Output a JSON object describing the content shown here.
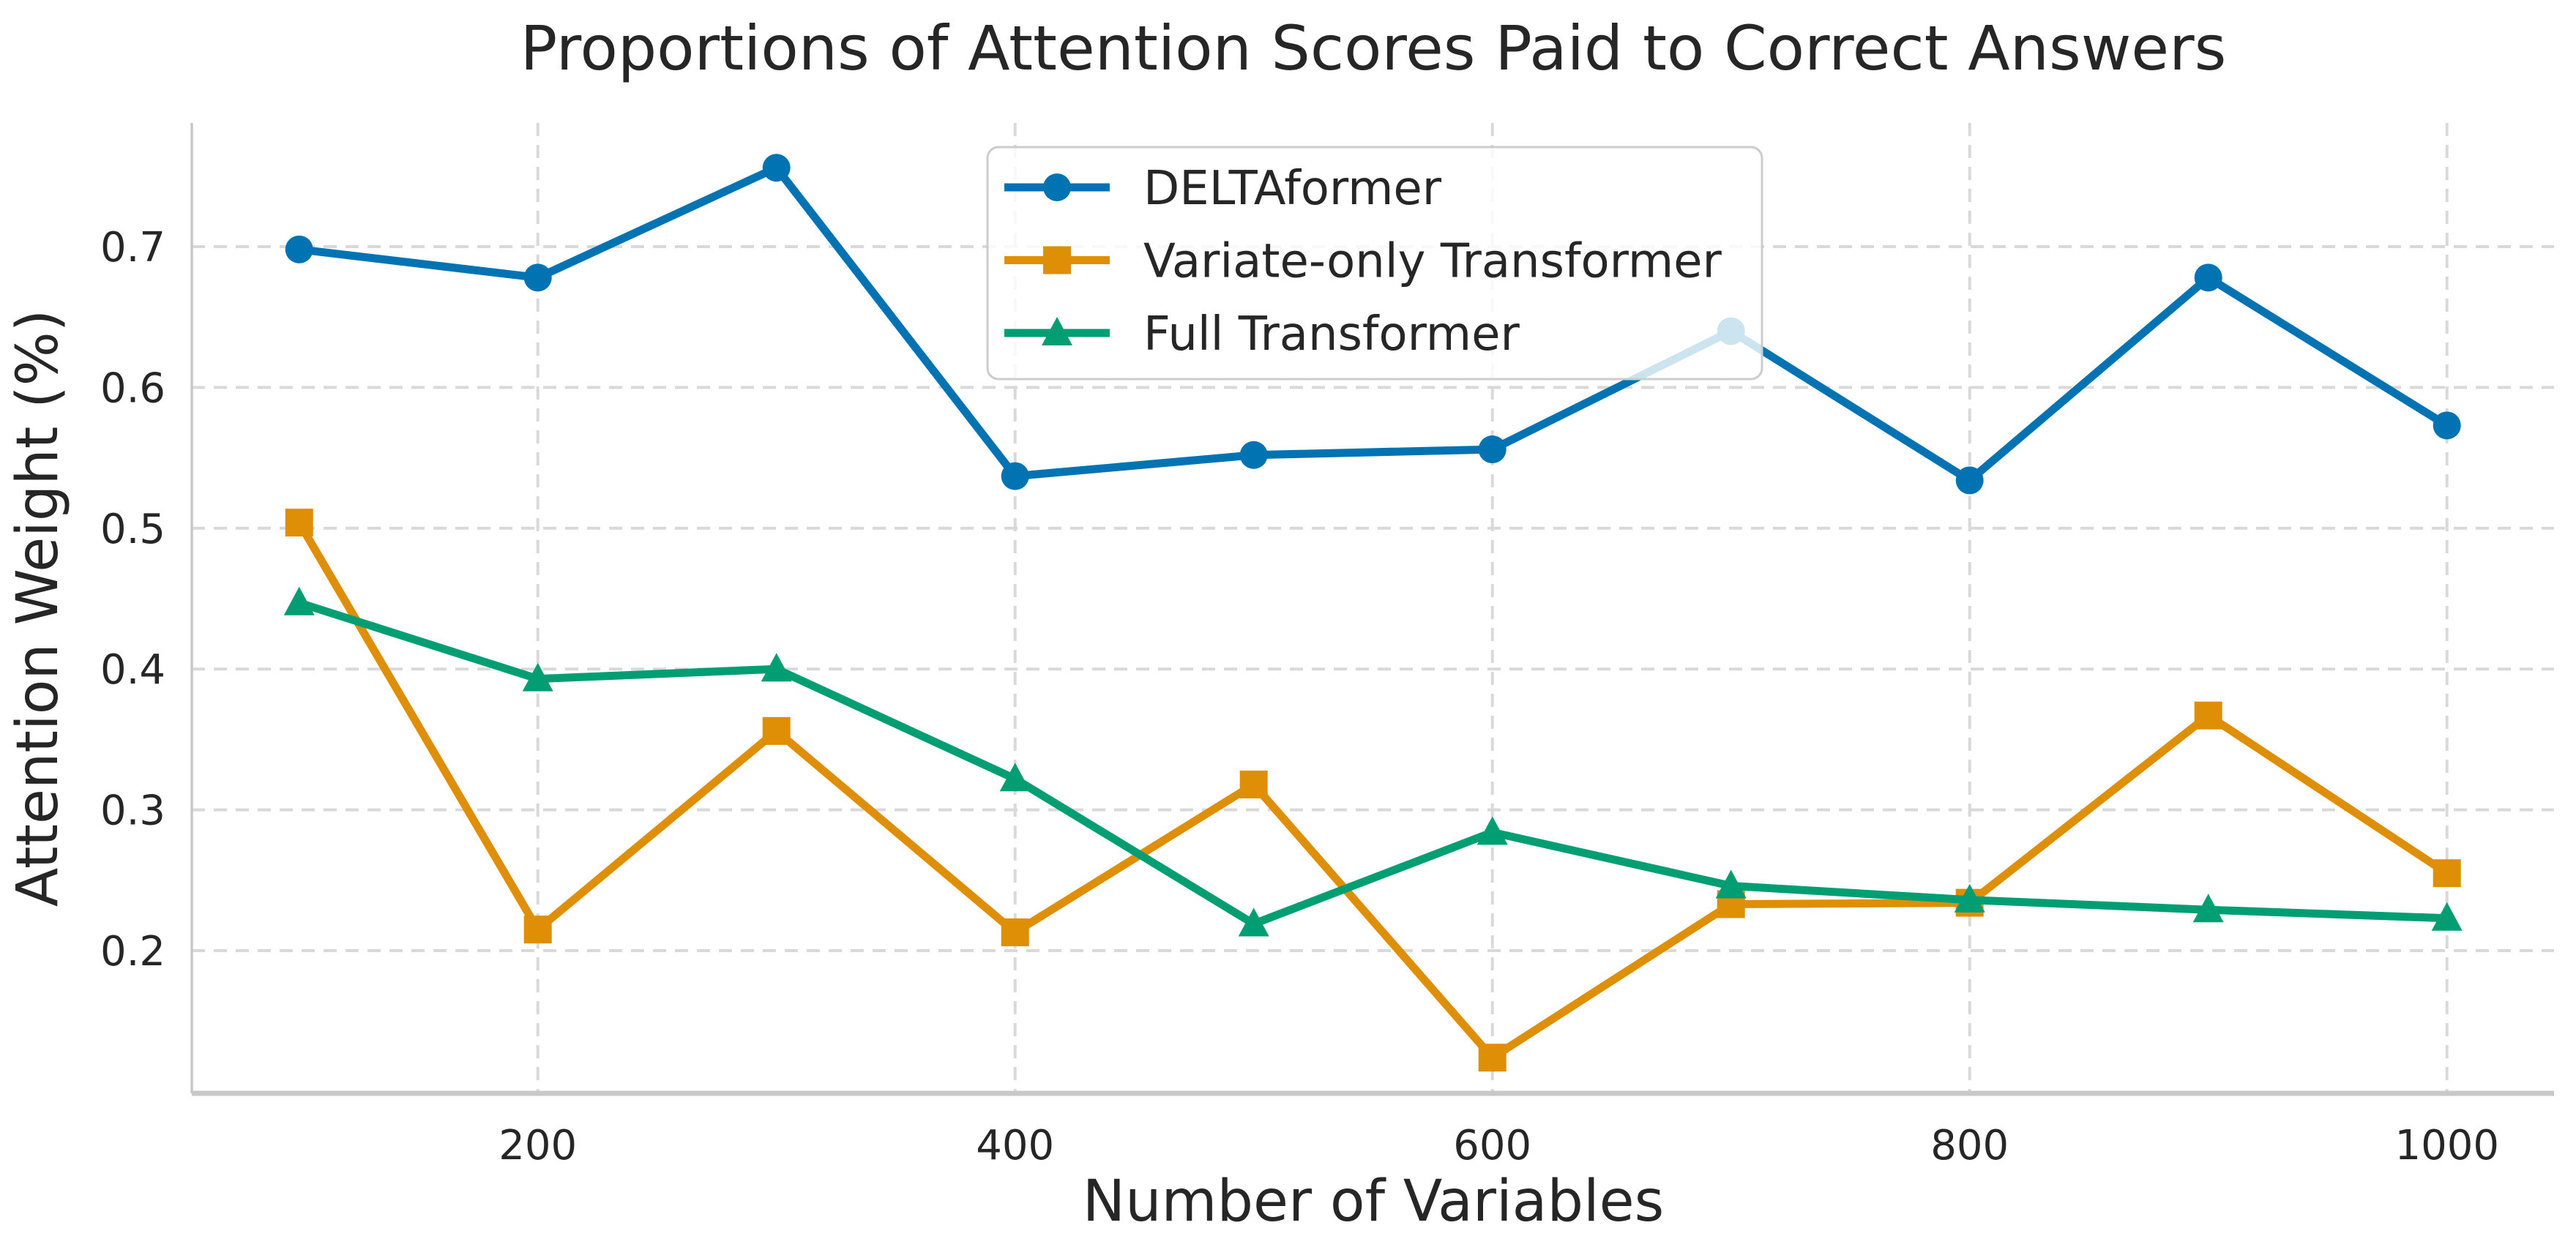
{
  "chart_data": {
    "type": "line",
    "title": "Proportions of Attention Scores Paid to Correct Answers",
    "xlabel": "Number of Variables",
    "ylabel": "Attention Weight (%)",
    "x": [
      100,
      200,
      300,
      400,
      500,
      600,
      700,
      800,
      900,
      1000
    ],
    "series": [
      {
        "name": "DELTAformer",
        "color": "#0173b2",
        "marker": "circle",
        "values": [
          0.698,
          0.678,
          0.756,
          0.537,
          0.552,
          0.556,
          0.64,
          0.534,
          0.678,
          0.573
        ]
      },
      {
        "name": "Variate-only Transformer",
        "color": "#de8f05",
        "marker": "square",
        "values": [
          0.504,
          0.215,
          0.356,
          0.213,
          0.318,
          0.124,
          0.233,
          0.234,
          0.367,
          0.255
        ]
      },
      {
        "name": "Full Transformer",
        "color": "#029e73",
        "marker": "triangle",
        "values": [
          0.447,
          0.393,
          0.4,
          0.322,
          0.219,
          0.284,
          0.246,
          0.236,
          0.229,
          0.223
        ]
      }
    ],
    "xticks": [
      200,
      400,
      600,
      800,
      1000
    ],
    "yticks": [
      0.2,
      0.3,
      0.4,
      0.5,
      0.6,
      0.7
    ],
    "xlim": [
      55,
      1045
    ],
    "ylim": [
      0.098,
      0.788
    ],
    "grid": true,
    "grid_style": "dashed",
    "legend_position": "upper center",
    "legend_frame_opacity": 0.8,
    "background_color": "#ffffff",
    "grid_color": "#d9d9d9",
    "spine_color": "#c8c8c8",
    "text_color": "#262626"
  }
}
